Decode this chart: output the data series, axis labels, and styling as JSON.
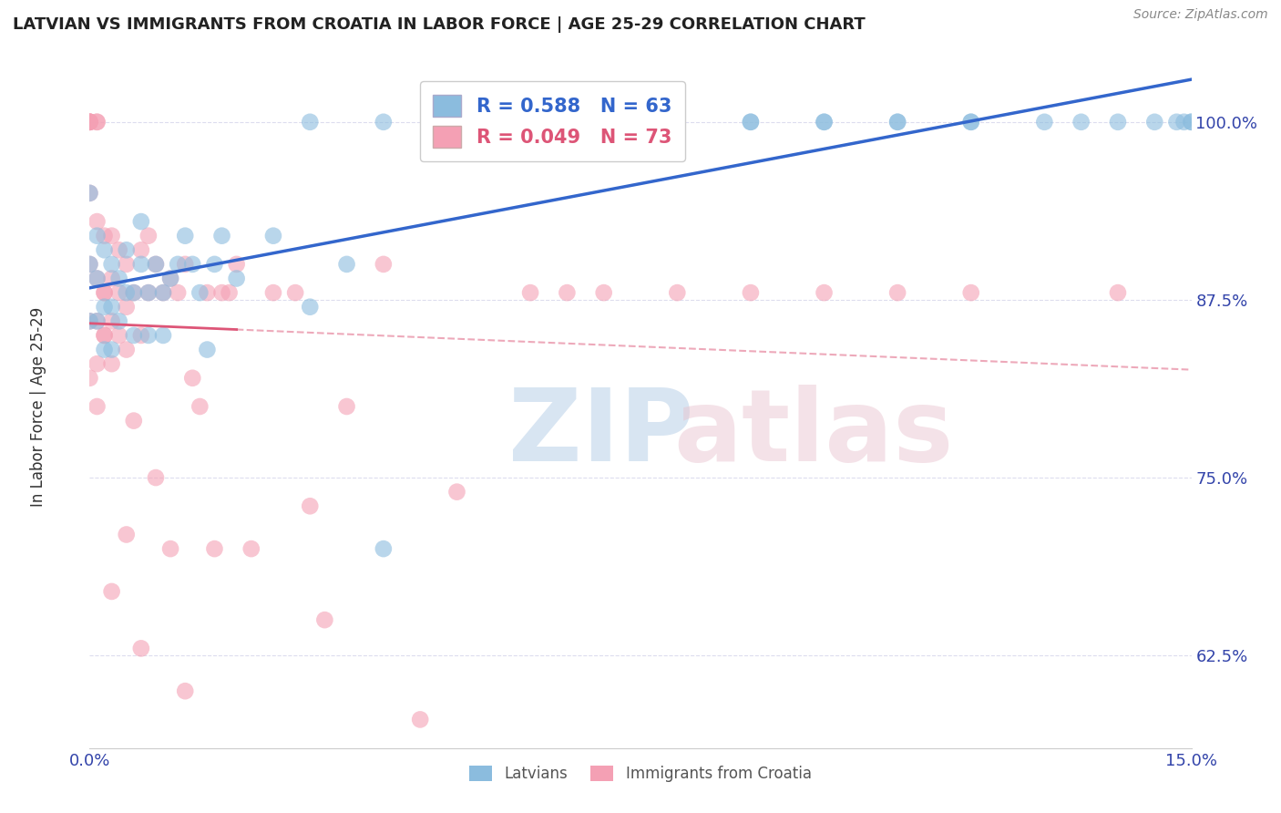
{
  "title": "LATVIAN VS IMMIGRANTS FROM CROATIA IN LABOR FORCE | AGE 25-29 CORRELATION CHART",
  "source": "Source: ZipAtlas.com",
  "ylabel": "In Labor Force | Age 25-29",
  "xlim": [
    0.0,
    0.15
  ],
  "ylim": [
    0.56,
    1.04
  ],
  "yticks": [
    0.625,
    0.75,
    0.875,
    1.0
  ],
  "ytick_labels": [
    "62.5%",
    "75.0%",
    "87.5%",
    "100.0%"
  ],
  "xticks": [
    0.0,
    0.15
  ],
  "xtick_labels": [
    "0.0%",
    "15.0%"
  ],
  "latvian_R": 0.588,
  "latvian_N": 63,
  "croatia_R": 0.049,
  "croatia_N": 73,
  "latvian_color": "#8bbcde",
  "croatia_color": "#f4a0b4",
  "latvian_line_color": "#3366cc",
  "croatia_line_color": "#dd5577",
  "legend_latvian_label": "Latvians",
  "legend_croatia_label": "Immigrants from Croatia",
  "latvian_x": [
    0.0,
    0.0,
    0.0,
    0.001,
    0.001,
    0.001,
    0.002,
    0.002,
    0.002,
    0.003,
    0.003,
    0.003,
    0.004,
    0.004,
    0.005,
    0.005,
    0.006,
    0.006,
    0.007,
    0.007,
    0.008,
    0.008,
    0.009,
    0.01,
    0.01,
    0.011,
    0.012,
    0.013,
    0.014,
    0.015,
    0.016,
    0.017,
    0.018,
    0.02,
    0.025,
    0.03,
    0.035,
    0.04,
    0.07,
    0.075,
    0.08,
    0.09,
    0.1,
    0.11,
    0.12,
    0.13,
    0.135,
    0.14,
    0.145,
    0.148,
    0.149,
    0.15,
    0.15,
    0.12,
    0.11,
    0.1,
    0.09,
    0.08,
    0.07,
    0.06,
    0.05,
    0.04,
    0.03
  ],
  "latvian_y": [
    0.95,
    0.9,
    0.86,
    0.92,
    0.89,
    0.86,
    0.91,
    0.87,
    0.84,
    0.9,
    0.87,
    0.84,
    0.89,
    0.86,
    0.91,
    0.88,
    0.88,
    0.85,
    0.93,
    0.9,
    0.88,
    0.85,
    0.9,
    0.88,
    0.85,
    0.89,
    0.9,
    0.92,
    0.9,
    0.88,
    0.84,
    0.9,
    0.92,
    0.89,
    0.92,
    0.87,
    0.9,
    0.7,
    1.0,
    1.0,
    1.0,
    1.0,
    1.0,
    1.0,
    1.0,
    1.0,
    1.0,
    1.0,
    1.0,
    1.0,
    1.0,
    1.0,
    1.0,
    1.0,
    1.0,
    1.0,
    1.0,
    1.0,
    1.0,
    1.0,
    1.0,
    1.0,
    1.0
  ],
  "croatia_x": [
    0.0,
    0.0,
    0.0,
    0.0,
    0.0,
    0.0,
    0.0,
    0.0,
    0.0,
    0.001,
    0.001,
    0.001,
    0.001,
    0.001,
    0.001,
    0.001,
    0.002,
    0.002,
    0.002,
    0.002,
    0.002,
    0.003,
    0.003,
    0.003,
    0.003,
    0.004,
    0.004,
    0.004,
    0.005,
    0.005,
    0.005,
    0.006,
    0.006,
    0.007,
    0.007,
    0.008,
    0.008,
    0.009,
    0.01,
    0.011,
    0.012,
    0.013,
    0.014,
    0.015,
    0.016,
    0.017,
    0.018,
    0.019,
    0.02,
    0.022,
    0.025,
    0.028,
    0.03,
    0.032,
    0.035,
    0.04,
    0.045,
    0.05,
    0.06,
    0.065,
    0.07,
    0.08,
    0.09,
    0.1,
    0.11,
    0.12,
    0.14,
    0.003,
    0.005,
    0.007,
    0.009,
    0.011,
    0.013
  ],
  "croatia_y": [
    1.0,
    1.0,
    1.0,
    1.0,
    1.0,
    0.95,
    0.9,
    0.86,
    0.82,
    1.0,
    1.0,
    0.93,
    0.89,
    0.86,
    0.83,
    0.8,
    0.92,
    0.88,
    0.85,
    0.88,
    0.85,
    0.92,
    0.89,
    0.86,
    0.83,
    0.91,
    0.88,
    0.85,
    0.9,
    0.87,
    0.84,
    0.88,
    0.79,
    0.91,
    0.85,
    0.92,
    0.88,
    0.9,
    0.88,
    0.89,
    0.88,
    0.9,
    0.82,
    0.8,
    0.88,
    0.7,
    0.88,
    0.88,
    0.9,
    0.7,
    0.88,
    0.88,
    0.73,
    0.65,
    0.8,
    0.9,
    0.58,
    0.74,
    0.88,
    0.88,
    0.88,
    0.88,
    0.88,
    0.88,
    0.88,
    0.88,
    0.88,
    0.67,
    0.71,
    0.63,
    0.75,
    0.7,
    0.6
  ],
  "croatia_data_xlim": 0.02
}
